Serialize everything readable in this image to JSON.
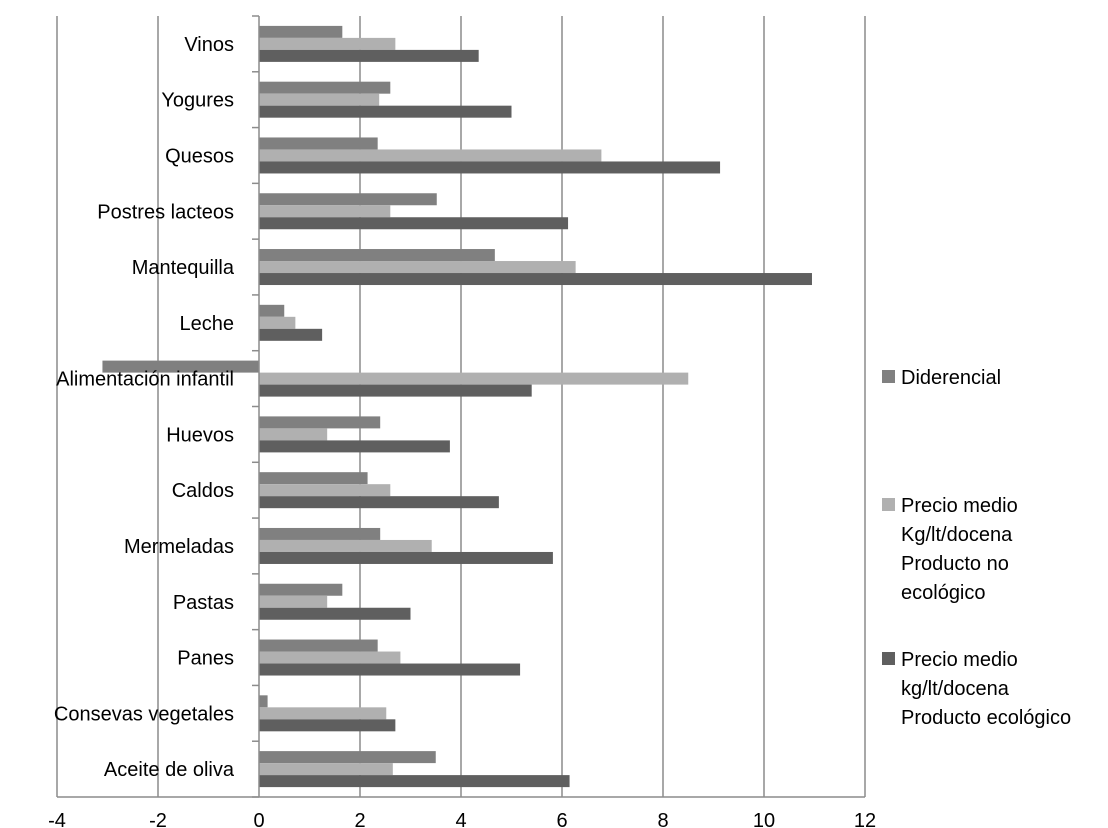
{
  "chart_data": {
    "type": "bar",
    "orientation": "horizontal",
    "grid": true,
    "legend_position": "right",
    "xlim": [
      -4,
      12
    ],
    "x_ticks": [
      "-4",
      "-2",
      "0",
      "2",
      "4",
      "6",
      "8",
      "10",
      "12"
    ],
    "categories": [
      "Vinos",
      "Yogures",
      "Quesos",
      "Postres lacteos",
      "Mantequilla",
      "Leche",
      "Alimentación infantil",
      "Huevos",
      "Caldos",
      "Mermeladas",
      "Pastas",
      "Panes",
      "Consevas vegetales",
      "Aceite de oliva"
    ],
    "series": [
      {
        "name": "Diderencial",
        "color": "#808080",
        "values": [
          1.65,
          2.6,
          2.35,
          3.52,
          4.67,
          0.5,
          -3.1,
          2.4,
          2.15,
          2.4,
          1.65,
          2.35,
          0.17,
          3.5
        ]
      },
      {
        "name": "Precio medio Kg/lt/docena Producto no ecológico",
        "color": "#b0b0b0",
        "values": [
          2.7,
          2.38,
          6.78,
          2.6,
          6.27,
          0.72,
          8.5,
          1.35,
          2.6,
          3.42,
          1.35,
          2.8,
          2.52,
          2.65
        ]
      },
      {
        "name": "Precio medio kg/lt/docena Producto ecológico",
        "color": "#5f5f5f",
        "values": [
          4.35,
          5.0,
          9.13,
          6.12,
          10.95,
          1.25,
          5.4,
          3.78,
          4.75,
          5.82,
          3.0,
          5.17,
          2.7,
          6.15
        ]
      }
    ]
  },
  "legend": [
    {
      "lines": [
        "Diderencial"
      ],
      "color": "#808080"
    },
    {
      "lines": [
        "Precio medio",
        "Kg/lt/docena",
        "Producto no",
        "ecológico"
      ],
      "color": "#b0b0b0"
    },
    {
      "lines": [
        "Precio medio",
        "kg/lt/docena",
        "Producto ecológico"
      ],
      "color": "#5f5f5f"
    }
  ]
}
